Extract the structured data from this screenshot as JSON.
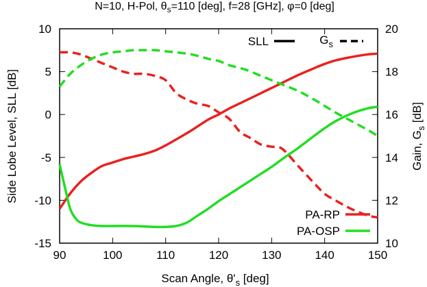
{
  "chart_data": {
    "type": "line",
    "title_parts": {
      "a": "N=10, H-Pol, θ",
      "a_sub": "s",
      "b": "=110 [deg], f=28 [GHz], φ=0 [deg]"
    },
    "xlabel_parts": {
      "a": "Scan Angle, θ'",
      "a_sub": "s",
      "b": " [deg]"
    },
    "ylabel_left": "Side Lobe Level, SLL [dB]",
    "ylabel_right_parts": {
      "a": "Gain, G",
      "a_sub": "s",
      "b": " [dB]"
    },
    "xlim": [
      90,
      150
    ],
    "ylim_left": [
      -15,
      10
    ],
    "ylim_right": [
      10,
      20
    ],
    "xticks": [
      90,
      100,
      110,
      120,
      130,
      140,
      150
    ],
    "yticks_left": [
      -15,
      -10,
      -5,
      0,
      5,
      10
    ],
    "yticks_right": [
      10,
      12,
      14,
      16,
      18,
      20
    ],
    "grid": false,
    "style_legend": {
      "solid_label": "SLL",
      "dashed_label_parts": {
        "a": "G",
        "a_sub": "s"
      },
      "placement": "top-right"
    },
    "color_legend": {
      "placement": "bottom-right",
      "entries": [
        {
          "label": "PA-RP",
          "color": "#e8221e"
        },
        {
          "label": "PA-OSP",
          "color": "#22dd22"
        }
      ]
    },
    "series": [
      {
        "name": "PA-RP",
        "metric": "SLL",
        "axis": "left",
        "dash": "solid",
        "color": "#e8221e",
        "x": [
          90,
          92,
          94,
          96,
          98,
          100,
          102,
          104,
          106,
          108,
          110,
          112,
          115,
          118,
          120,
          122,
          125,
          128,
          130,
          132,
          135,
          138,
          140,
          142,
          145,
          148,
          150
        ],
        "y": [
          -11,
          -9.2,
          -7.8,
          -6.8,
          -6.0,
          -5.6,
          -5.2,
          -4.9,
          -4.6,
          -4.2,
          -3.6,
          -2.9,
          -1.8,
          -0.6,
          0,
          0.7,
          1.6,
          2.5,
          3.1,
          3.7,
          4.6,
          5.4,
          5.9,
          6.3,
          6.7,
          7.0,
          7.1
        ]
      },
      {
        "name": "PA-OSP",
        "metric": "SLL",
        "axis": "left",
        "dash": "solid",
        "color": "#22dd22",
        "x": [
          90,
          91,
          92,
          93,
          94,
          96,
          98,
          100,
          104,
          108,
          110,
          112,
          114,
          116,
          118,
          120,
          122,
          125,
          128,
          130,
          132,
          135,
          138,
          140,
          142,
          145,
          148,
          150
        ],
        "y": [
          -5.8,
          -8.5,
          -11.0,
          -12.1,
          -12.6,
          -12.9,
          -13.0,
          -13.0,
          -13.0,
          -13.1,
          -13.1,
          -13.0,
          -12.6,
          -11.8,
          -11.0,
          -10.1,
          -9.3,
          -8.1,
          -6.9,
          -6.1,
          -5.2,
          -3.9,
          -2.5,
          -1.6,
          -0.8,
          0.1,
          0.7,
          0.9
        ]
      },
      {
        "name": "PA-RP",
        "metric": "Gs",
        "axis": "right",
        "dash": "dashed",
        "color": "#e8221e",
        "x": [
          90,
          92,
          94,
          96,
          98,
          100,
          102,
          104,
          106,
          108,
          110,
          112,
          114,
          116,
          118,
          120,
          122,
          124,
          126,
          128,
          130,
          132,
          135,
          138,
          140,
          142,
          145,
          148,
          150
        ],
        "y": [
          18.9,
          18.9,
          18.8,
          18.6,
          18.4,
          18.2,
          18.0,
          17.9,
          17.9,
          17.8,
          17.6,
          17.0,
          16.7,
          16.5,
          16.4,
          16.1,
          15.8,
          15.2,
          14.9,
          14.6,
          14.5,
          14.4,
          13.6,
          12.8,
          12.3,
          12.0,
          11.6,
          11.3,
          11.2
        ]
      },
      {
        "name": "PA-OSP",
        "metric": "Gs",
        "axis": "right",
        "dash": "dashed",
        "color": "#22dd22",
        "x": [
          90,
          92,
          94,
          96,
          98,
          100,
          102,
          104,
          106,
          108,
          110,
          112,
          115,
          118,
          120,
          122,
          125,
          128,
          130,
          132,
          135,
          138,
          140,
          142,
          145,
          148,
          150
        ],
        "y": [
          17.3,
          17.9,
          18.3,
          18.6,
          18.8,
          18.9,
          18.95,
          19.0,
          19.0,
          19.0,
          18.95,
          18.9,
          18.8,
          18.6,
          18.5,
          18.3,
          18.1,
          17.8,
          17.6,
          17.4,
          17.1,
          16.7,
          16.4,
          16.1,
          15.7,
          15.3,
          15.0
        ]
      }
    ]
  }
}
